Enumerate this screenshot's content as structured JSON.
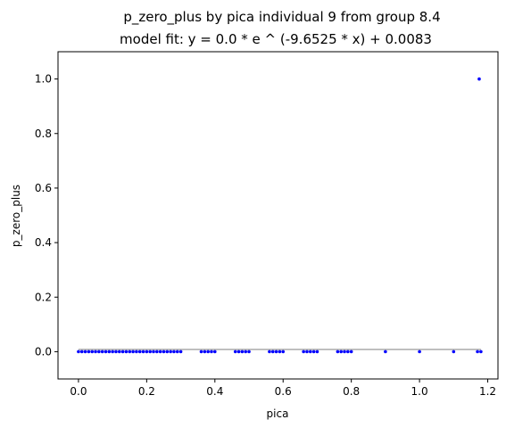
{
  "chart_data": {
    "type": "scatter",
    "title": "p_zero_plus by pica individual 9 from group 8.4",
    "subtitle": "model fit: y = 0.0 * e ^ (-9.6525 * x) + 0.0083",
    "xlabel": "pica",
    "ylabel": "p_zero_plus",
    "xlim": [
      -0.06,
      1.23
    ],
    "ylim": [
      -0.1,
      1.1
    ],
    "xticks": [
      {
        "value": 0.0,
        "label": "0.0"
      },
      {
        "value": 0.2,
        "label": "0.2"
      },
      {
        "value": 0.4,
        "label": "0.4"
      },
      {
        "value": 0.6,
        "label": "0.6"
      },
      {
        "value": 0.8,
        "label": "0.8"
      },
      {
        "value": 1.0,
        "label": "1.0"
      },
      {
        "value": 1.2,
        "label": "1.2"
      }
    ],
    "yticks": [
      {
        "value": 0.0,
        "label": "0.0"
      },
      {
        "value": 0.2,
        "label": "0.2"
      },
      {
        "value": 0.4,
        "label": "0.4"
      },
      {
        "value": 0.6,
        "label": "0.6"
      },
      {
        "value": 0.8,
        "label": "0.8"
      },
      {
        "value": 1.0,
        "label": "1.0"
      }
    ],
    "grid": false,
    "series": [
      {
        "kind": "points",
        "color": "#0000ff",
        "x": [
          0.0,
          0.01,
          0.02,
          0.03,
          0.04,
          0.05,
          0.06,
          0.07,
          0.08,
          0.09,
          0.1,
          0.11,
          0.12,
          0.13,
          0.14,
          0.15,
          0.16,
          0.17,
          0.18,
          0.19,
          0.2,
          0.21,
          0.22,
          0.23,
          0.24,
          0.25,
          0.26,
          0.27,
          0.28,
          0.29,
          0.3,
          0.36,
          0.37,
          0.38,
          0.39,
          0.4,
          0.46,
          0.47,
          0.48,
          0.49,
          0.5,
          0.56,
          0.57,
          0.58,
          0.59,
          0.6,
          0.66,
          0.67,
          0.68,
          0.69,
          0.7,
          0.76,
          0.77,
          0.78,
          0.79,
          0.8,
          0.9,
          1.0,
          1.1,
          1.17,
          1.175,
          1.18
        ],
        "y": [
          0,
          0,
          0,
          0,
          0,
          0,
          0,
          0,
          0,
          0,
          0,
          0,
          0,
          0,
          0,
          0,
          0,
          0,
          0,
          0,
          0,
          0,
          0,
          0,
          0,
          0,
          0,
          0,
          0,
          0,
          0,
          0,
          0,
          0,
          0,
          0,
          0,
          0,
          0,
          0,
          0,
          0,
          0,
          0,
          0,
          0,
          0,
          0,
          0,
          0,
          0,
          0,
          0,
          0,
          0,
          0,
          0,
          0,
          0,
          0,
          1.0,
          0
        ]
      },
      {
        "kind": "fit-line",
        "color": "#aaaaaa",
        "x": [
          0.0,
          1.18
        ],
        "y": [
          0.0083,
          0.0083
        ]
      }
    ]
  }
}
